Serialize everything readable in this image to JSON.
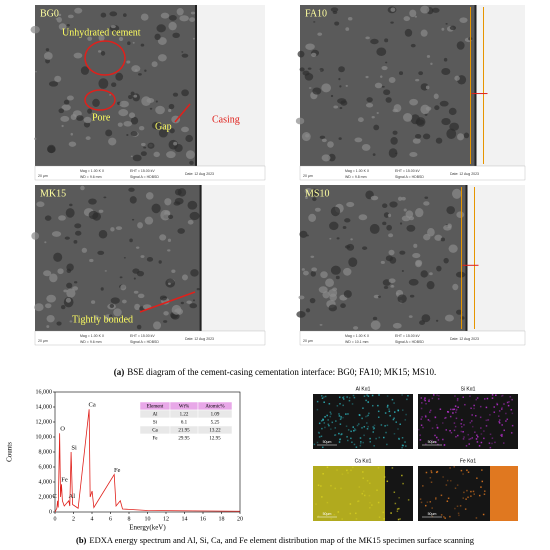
{
  "figure_a": {
    "panels": [
      {
        "label": "BG0",
        "info": [
          "20 µm",
          "Mag = 1.00 K X",
          "WD = 9.6 mm",
          "EHT = 15.00 kV",
          "Signal A = HDBSD",
          "Date: 12 Aug 2023"
        ],
        "annotations": [
          "Unhydrated cement",
          "Pore",
          "Gap",
          "Casing"
        ]
      },
      {
        "label": "FA10",
        "info": [
          "20 µm",
          "Mag = 1.00 K X",
          "WD = 9.8 mm",
          "EHT = 15.00 kV",
          "Signal A = HDBSD",
          "Date: 12 Aug 2023"
        ],
        "annotations": []
      },
      {
        "label": "MK15",
        "info": [
          "20 µm",
          "Mag = 1.00 K X",
          "WD = 9.6 mm",
          "EHT = 15.00 kV",
          "Signal A = HDBSD",
          "Date: 12 Aug 2023"
        ],
        "annotations": [
          "Tightly bonded"
        ]
      },
      {
        "label": "MS10",
        "info": [
          "20 µm",
          "Mag = 1.00 K X",
          "WD = 10.1 mm",
          "EHT = 15.00 kV",
          "Signal A = HDBSD",
          "Date: 12 Aug 2023"
        ],
        "annotations": []
      }
    ],
    "caption": {
      "label": "(a)",
      "text": "BSE diagram of the cement-casing cementation interface: BG0; FA10; MK15; MS10."
    }
  },
  "figure_b": {
    "spectrum": {
      "type": "line",
      "xlabel": "Energy(keV)",
      "ylabel": "Counts",
      "color": "#e0201b",
      "x": [
        0,
        0.2,
        0.28,
        0.35,
        0.5,
        0.6,
        0.7,
        0.8,
        1.0,
        1.49,
        1.6,
        1.74,
        1.9,
        2.5,
        3.69,
        3.8,
        4.01,
        4.2,
        6.4,
        6.6,
        7.06,
        7.3,
        10,
        20
      ],
      "values": [
        0,
        500,
        1500,
        600,
        10500,
        2000,
        3700,
        1500,
        800,
        1500,
        800,
        8000,
        1000,
        500,
        13700,
        2000,
        2800,
        600,
        5000,
        800,
        1500,
        400,
        200,
        100
      ],
      "xlim": [
        0,
        20
      ],
      "ylim": [
        0,
        16000
      ],
      "xticks": [
        0,
        2,
        4,
        6,
        8,
        10,
        12,
        14,
        16,
        18,
        20
      ],
      "yticks": [
        0,
        {
          "value": 2000,
          "label": "2,000"
        },
        {
          "value": 4000,
          "label": "4,000"
        },
        {
          "value": 6000,
          "label": "6,000"
        },
        {
          "value": 8000,
          "label": "8,000"
        },
        {
          "value": 10000,
          "label": "10,000"
        },
        {
          "value": 12000,
          "label": "12,000"
        },
        {
          "value": 14000,
          "label": "14,000"
        },
        {
          "value": 16000,
          "label": "16,000"
        }
      ],
      "peaks": [
        {
          "label": "O",
          "x": 0.5,
          "y": 10500
        },
        {
          "label": "C",
          "x": 0.28,
          "y": 1500
        },
        {
          "label": "Fe",
          "x": 0.7,
          "y": 3700
        },
        {
          "label": "Al",
          "x": 1.49,
          "y": 1500
        },
        {
          "label": "Si",
          "x": 1.74,
          "y": 8000
        },
        {
          "label": "Ca",
          "x": 3.69,
          "y": 13700
        },
        {
          "label": "Fe",
          "x": 6.4,
          "y": 5000
        }
      ],
      "table": {
        "header": [
          "Element",
          "Wt%",
          "Atomic%"
        ],
        "rows": [
          [
            "Al",
            "1.22",
            "1.09"
          ],
          [
            "Si",
            "6.1",
            "5.25"
          ],
          [
            "Ca",
            "21.95",
            "13.22"
          ],
          [
            "Fe",
            "29.95",
            "12.95"
          ]
        ]
      }
    },
    "maps": [
      {
        "title": "Al Kα1",
        "scale": "50µm"
      },
      {
        "title": "Si Kα1",
        "scale": "50µm"
      },
      {
        "title": "Ca Kα1",
        "scale": "50µm"
      },
      {
        "title": "Fe Kα1",
        "scale": "50µm"
      }
    ],
    "caption": {
      "label": "(b)",
      "text": "EDXA energy spectrum and Al, Si, Ca, and Fe element distribution map of the MK15 specimen surface scanning"
    }
  }
}
